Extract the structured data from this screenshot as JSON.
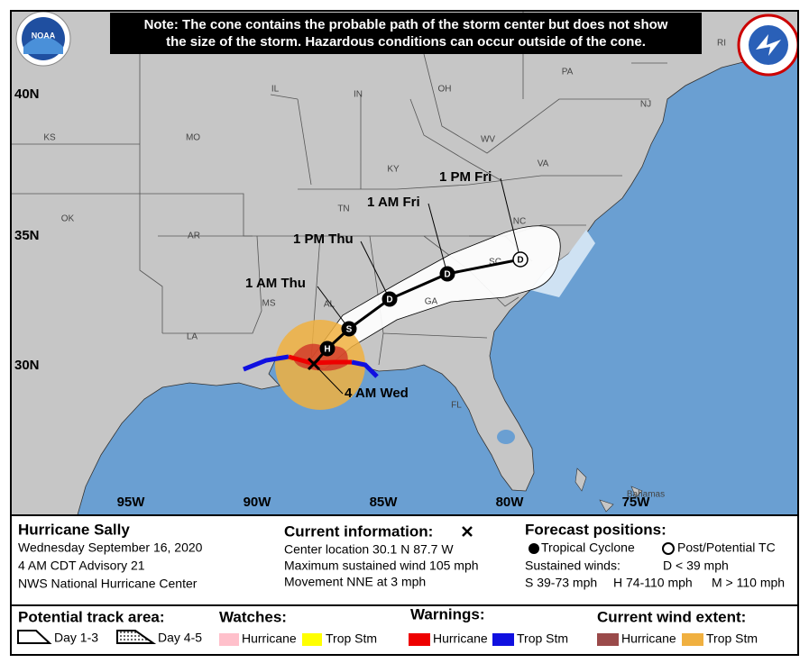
{
  "logo": "NOAA",
  "note": [
    "Note: The cone contains the probable path of the storm center but does not show",
    "the size of the storm. Hazardous conditions can occur outside of the cone."
  ],
  "latitude_labels": [
    "40N",
    "35N",
    "30N"
  ],
  "longitude_labels": [
    "95W",
    "90W",
    "85W",
    "80W",
    "75W"
  ],
  "state_labels": [
    "KS",
    "MO",
    "IL",
    "IN",
    "OH",
    "PA",
    "NJ",
    "RI",
    "KY",
    "WV",
    "VA",
    "TN",
    "NC",
    "OK",
    "AR",
    "SC",
    "MS",
    "AL",
    "GA",
    "LA",
    "FL"
  ],
  "place_labels": [
    "Bahamas"
  ],
  "forecast_times": [
    "4 AM Wed",
    "1 AM Thu",
    "1 PM Thu",
    "1 AM Fri",
    "1 PM Fri"
  ],
  "track_points": [
    "H",
    "S",
    "D",
    "D",
    "D"
  ],
  "storm": {
    "name": "Hurricane Sally",
    "date": "Wednesday September 16, 2020",
    "advisory": "4 AM CDT Advisory 21",
    "source": "NWS National Hurricane Center"
  },
  "current_information": {
    "title": "Current information:",
    "lines": [
      "Center location 30.1 N 87.7 W",
      "Maximum sustained wind 105 mph",
      "Movement NNE at 3 mph"
    ]
  },
  "forecast_positions": {
    "title": "Forecast positions:",
    "tropical_cyclone": "Tropical Cyclone",
    "post_tc": "Post/Potential TC",
    "sustained_winds": "Sustained winds:",
    "d": "D < 39 mph",
    "s": "S 39-73 mph",
    "h": "H 74-110 mph",
    "m": "M > 110 mph"
  },
  "legend": {
    "potential_track_area": "Potential track area:",
    "day_1_3": "Day 1-3",
    "day_4_5": "Day 4-5",
    "watches": "Watches:",
    "watch_items": [
      "Hurricane",
      "Trop Stm"
    ],
    "warnings": "Warnings:",
    "warning_items": [
      "Hurricane",
      "Trop Stm"
    ],
    "wind_extent": "Current wind extent:",
    "wind_items": [
      "Hurricane",
      "Trop Stm"
    ]
  }
}
